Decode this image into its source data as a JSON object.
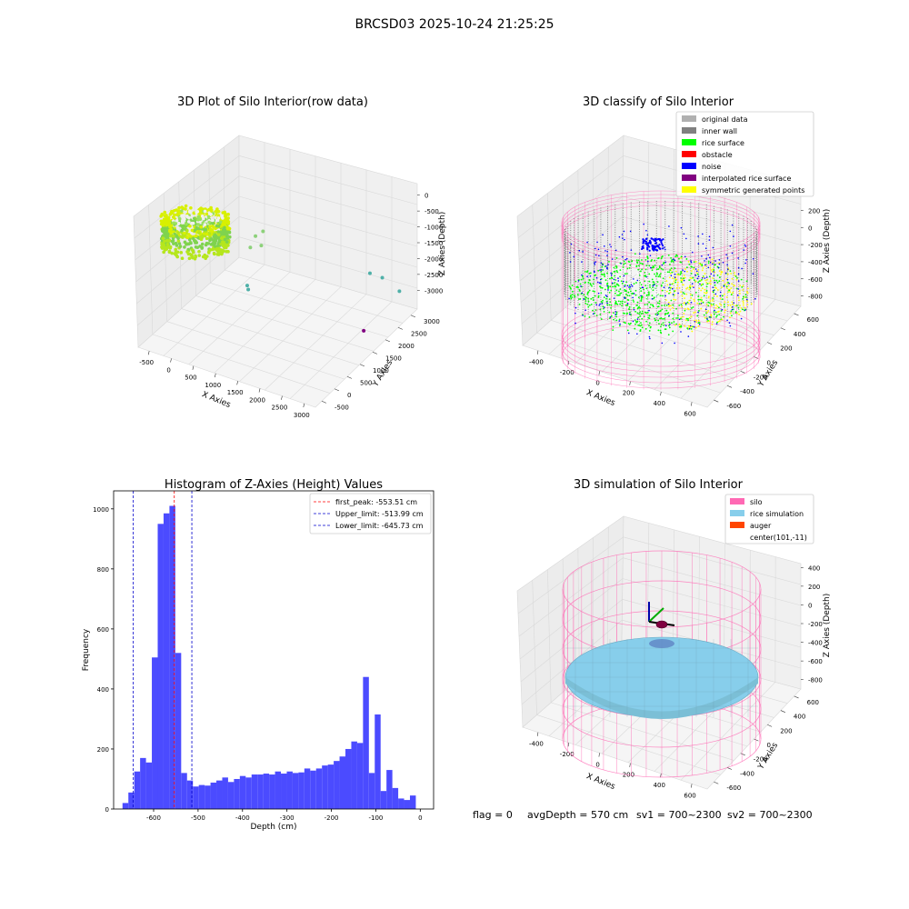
{
  "figure": {
    "suptitle": "BRCSD03 2025-10-24 21:25:25",
    "footer": {
      "flag": "flag = 0",
      "avg_depth": "avgDepth = 570 cm",
      "sv1": "sv1 = 700~2300",
      "sv2": "sv2 = 700~2300"
    }
  },
  "colors": {
    "raw_low": "#3b9e8c",
    "raw_high": "#d8f000",
    "raw_mid": "#7fd34e",
    "original_data": "#b0b0b0",
    "inner_wall": "#808080",
    "rice_surface": "#00ff00",
    "obstacle": "#ff0000",
    "noise": "#0000ff",
    "interpolated": "#800080",
    "symmetric": "#ffff00",
    "silo": "#ff69b4",
    "rice_sim": "#87ceeb",
    "auger": "#ff4500",
    "hist_bar": "#4b4bff",
    "peak_line": "#ff0000",
    "limit_line": "#0000cc"
  },
  "chart_data": [
    {
      "type": "scatter",
      "title": "3D Plot of Silo Interior(row data)",
      "xlabel": "X Axies",
      "ylabel": "Y Axies",
      "zlabel": "Z Axies (Depth)",
      "x_ticks": [
        "-500",
        "0",
        "500",
        "1000",
        "1500",
        "2000",
        "2500",
        "3000"
      ],
      "y_ticks": [
        "-500",
        "0",
        "500",
        "1000",
        "1500",
        "2000",
        "2500",
        "3000"
      ],
      "z_ticks": [
        "0",
        "-500",
        "-1000",
        "-1500",
        "-2000",
        "-2500",
        "-3000"
      ],
      "xlim": [
        -600,
        3100
      ],
      "ylim": [
        -600,
        3100
      ],
      "zlim": [
        -3300,
        200
      ],
      "outlier_points": [
        {
          "x": 700,
          "y": 1400,
          "z": -1200
        },
        {
          "x": 800,
          "y": 1500,
          "z": -1100
        },
        {
          "x": 850,
          "y": 1350,
          "z": -1350
        },
        {
          "x": 650,
          "y": 1300,
          "z": -1450
        },
        {
          "x": 700,
          "y": 1100,
          "z": -2300
        },
        {
          "x": 750,
          "y": 1050,
          "z": -2350
        },
        {
          "x": 2400,
          "y": 2600,
          "z": -2300
        },
        {
          "x": 2600,
          "y": 2700,
          "z": -2400
        },
        {
          "x": 2900,
          "y": 2800,
          "z": -2700
        },
        {
          "x": 2500,
          "y": 2200,
          "z": -3500
        }
      ]
    },
    {
      "type": "scatter",
      "title": "3D classify of Silo Interior",
      "xlabel": "X Axies",
      "ylabel": "Y Axies",
      "zlabel": "Z Axies (Depth)",
      "x_ticks": [
        "-400",
        "-200",
        "0",
        "200",
        "400",
        "600"
      ],
      "y_ticks": [
        "-600",
        "-400",
        "-200",
        "0",
        "200",
        "400",
        "600"
      ],
      "z_ticks": [
        "200",
        "0",
        "-200",
        "-400",
        "-600",
        "-800"
      ],
      "legend": [
        "original data",
        "inner wall",
        "rice surface",
        "obstacle",
        "noise",
        "interpolated rice surface",
        "symmetric generated points"
      ]
    },
    {
      "type": "bar",
      "title": "Histogram of Z-Axies (Height) Values",
      "xlabel": "Depth (cm)",
      "ylabel": "Frequency",
      "xlim": [
        -690,
        30
      ],
      "ylim": [
        0,
        1060
      ],
      "x_ticks": [
        -600,
        -500,
        -400,
        -300,
        -200,
        -100,
        0
      ],
      "y_ticks": [
        0,
        200,
        400,
        600,
        800,
        1000
      ],
      "bin_start": -670,
      "bin_width": 13.2,
      "values": [
        20,
        55,
        125,
        170,
        155,
        505,
        950,
        985,
        1010,
        520,
        120,
        95,
        75,
        80,
        78,
        88,
        95,
        105,
        90,
        100,
        110,
        105,
        115,
        115,
        118,
        115,
        125,
        118,
        125,
        120,
        122,
        135,
        128,
        135,
        145,
        148,
        160,
        175,
        200,
        225,
        220,
        440,
        120,
        315,
        60,
        130,
        70,
        35,
        30,
        45
      ],
      "lines": [
        {
          "label": "first_peak: -553.51 cm",
          "x": -553.51,
          "style": "peak"
        },
        {
          "label": "Upper_limit: -513.99 cm",
          "x": -513.99,
          "style": "limit"
        },
        {
          "label": "Lower_limit: -645.73 cm",
          "x": -645.73,
          "style": "limit"
        }
      ]
    },
    {
      "type": "scatter",
      "title": "3D simulation of Silo Interior",
      "xlabel": "X Axies",
      "ylabel": "Y Axies",
      "zlabel": "Z Axies (Depth)",
      "x_ticks": [
        "-400",
        "-200",
        "0",
        "200",
        "400",
        "600"
      ],
      "y_ticks": [
        "-600",
        "-400",
        "-200",
        "0",
        "200",
        "400",
        "600"
      ],
      "z_ticks": [
        "400",
        "200",
        "0",
        "-200",
        "-400",
        "-600",
        "-800"
      ],
      "legend": [
        "silo",
        "rice simulation",
        "auger",
        "center(101,-11)"
      ]
    }
  ]
}
